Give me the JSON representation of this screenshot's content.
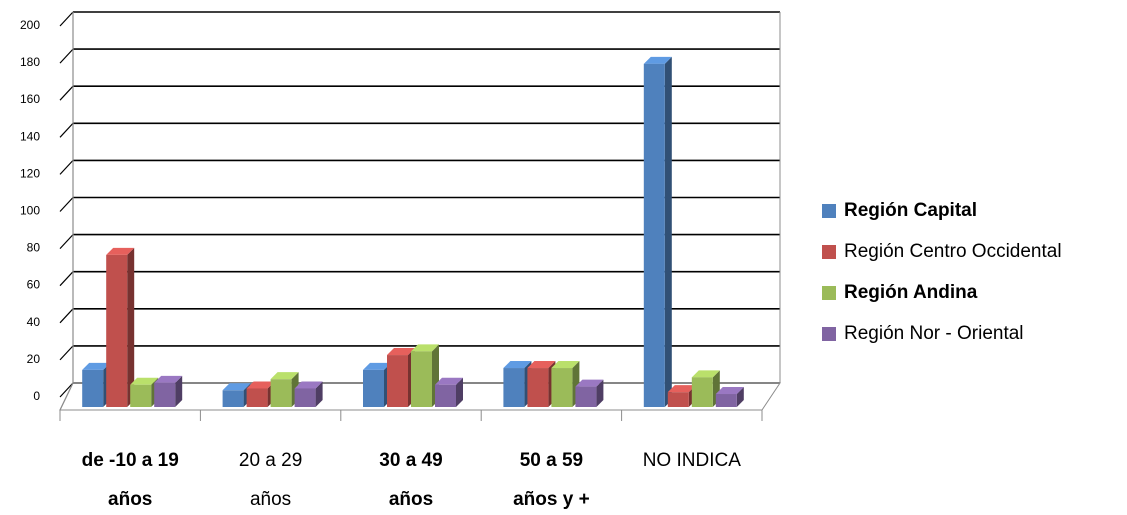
{
  "chart_data": {
    "type": "bar",
    "categories": [
      [
        "de -10 a 19",
        "años"
      ],
      [
        "20 a 29",
        "años"
      ],
      [
        "30 a 49",
        "años"
      ],
      [
        "50 a 59",
        "años y +"
      ],
      [
        "NO INDICA"
      ]
    ],
    "series": [
      {
        "name": "Región Capital",
        "color": "#4F81BD",
        "values": [
          20,
          9,
          20,
          21,
          185
        ]
      },
      {
        "name": "Región Centro Occidental",
        "color": "#C0504D",
        "values": [
          82,
          10,
          28,
          21,
          8
        ]
      },
      {
        "name": "Región Andina",
        "color": "#9BBB59",
        "values": [
          12,
          15,
          30,
          21,
          16
        ]
      },
      {
        "name": "Región Nor - Oriental",
        "color": "#8064A2",
        "values": [
          13,
          10,
          12,
          11,
          7
        ]
      }
    ],
    "yticks": [
      "0",
      "20",
      "40",
      "60",
      "80",
      "100",
      "120",
      "140",
      "160",
      "180",
      "200"
    ],
    "ylim": [
      0,
      200
    ],
    "grid": true,
    "legend_position": "right",
    "chart_style": "3d-clustered-column"
  }
}
